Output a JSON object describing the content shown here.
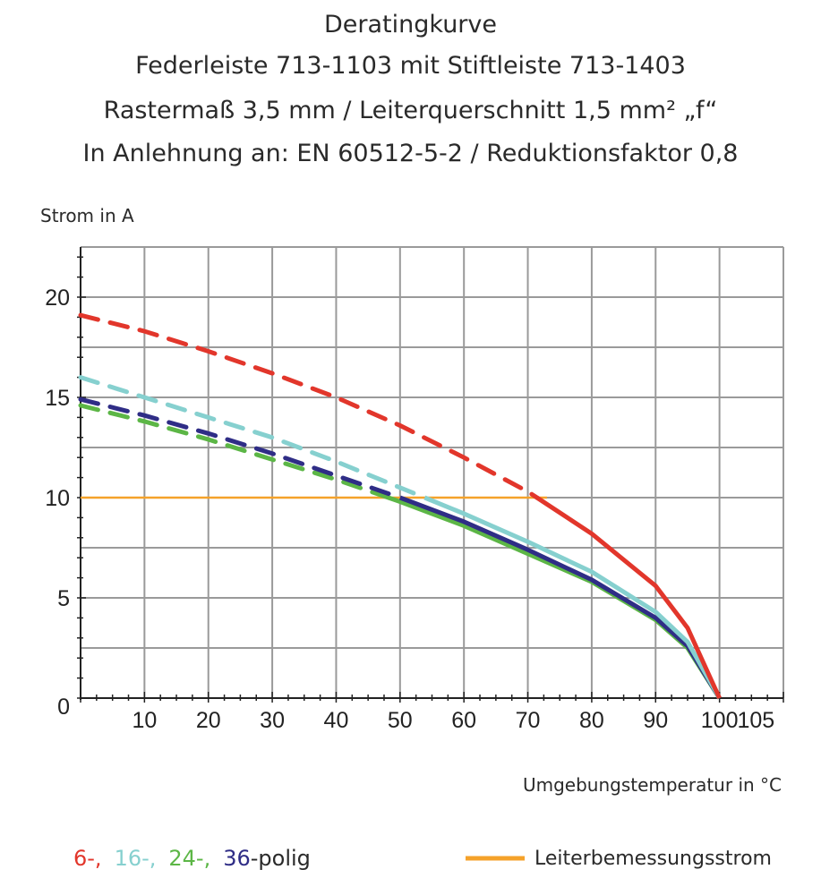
{
  "chart_data": {
    "type": "line",
    "title_lines": [
      "Deratingkurve",
      "Federleiste 713-1103 mit Stiftleiste 713-1403",
      "Rastermaß 3,5 mm / Leiterquerschnitt 1,5 mm² „f“",
      "In Anlehnung an: EN 60512-5-2 / Reduktionsfaktor 0,8"
    ],
    "ylabel": "Strom in A",
    "xlabel": "Umgebungstemperatur in °C",
    "xlim": [
      0,
      110
    ],
    "ylim": [
      0,
      22.5
    ],
    "x_ticks": [
      10,
      20,
      30,
      40,
      50,
      60,
      70,
      80,
      90,
      100,
      105
    ],
    "y_ticks": [
      0,
      5,
      10,
      15,
      20
    ],
    "grid": true,
    "dash_above": 10,
    "x": [
      0,
      10,
      20,
      30,
      40,
      50,
      60,
      70,
      80,
      90,
      95,
      100
    ],
    "series": [
      {
        "name": "6-,",
        "color": "#e2362b",
        "values": [
          19.1,
          18.3,
          17.3,
          16.2,
          15.0,
          13.6,
          12.0,
          10.3,
          8.2,
          5.6,
          3.5,
          0
        ]
      },
      {
        "name": "16-,",
        "color": "#86d0cf",
        "values": [
          16.0,
          15.0,
          14.0,
          13.0,
          11.8,
          10.5,
          9.2,
          7.8,
          6.3,
          4.3,
          2.8,
          0
        ]
      },
      {
        "name": "24-,",
        "color": "#5cb646",
        "values": [
          14.6,
          13.8,
          12.9,
          11.9,
          10.9,
          9.8,
          8.6,
          7.2,
          5.8,
          3.9,
          2.5,
          0
        ]
      },
      {
        "name": "36",
        "color": "#2f2d86",
        "values": [
          14.9,
          14.1,
          13.2,
          12.2,
          11.1,
          10.0,
          8.8,
          7.4,
          5.9,
          4.0,
          2.6,
          0
        ]
      }
    ],
    "legend_suffix": "-polig",
    "reference_line": {
      "name": "Leiterbemessungsstrom",
      "color": "#f5a22a",
      "y": 10,
      "x_range": [
        0,
        73
      ]
    },
    "legend_placement": "bottom"
  }
}
